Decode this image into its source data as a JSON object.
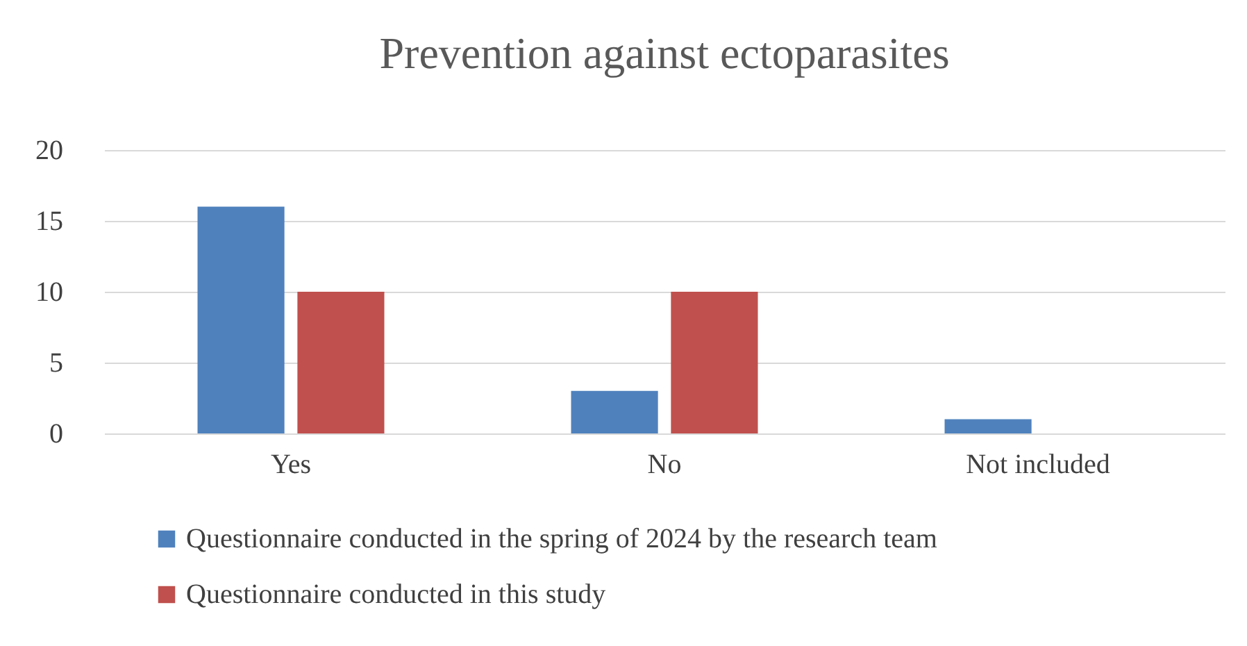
{
  "chart_data": {
    "type": "bar",
    "title": "Prevention against ectoparasites",
    "categories": [
      "Yes",
      "No",
      "Not included"
    ],
    "series": [
      {
        "name": "Questionnaire conducted in the spring of 2024 by the research team",
        "color": "#4f81bd",
        "values": [
          16,
          3,
          1
        ]
      },
      {
        "name": "Questionnaire conducted in this study",
        "color": "#c0504d",
        "values": [
          10,
          10,
          0
        ]
      }
    ],
    "ylim": [
      0,
      20
    ],
    "yticks": [
      0,
      5,
      10,
      15,
      20
    ],
    "grid": "y",
    "legend": "bottom"
  }
}
